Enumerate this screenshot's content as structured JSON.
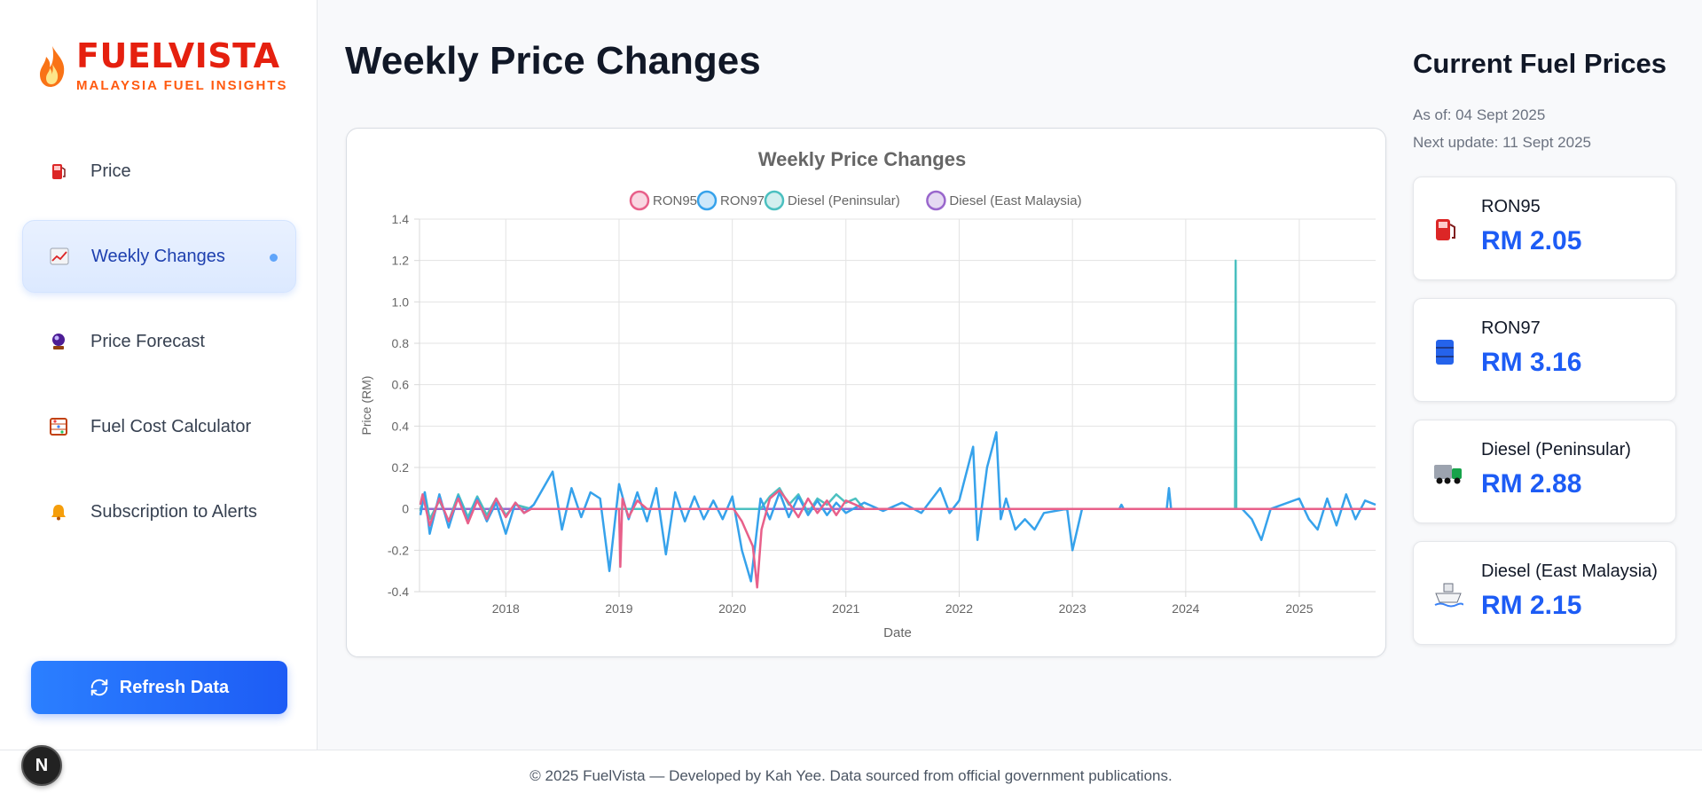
{
  "brand": {
    "title": "FUELVISTA",
    "subtitle": "MALAYSIA FUEL INSIGHTS"
  },
  "sidebar": {
    "items": [
      {
        "label": "Price",
        "icon": "fuel-pump-icon"
      },
      {
        "label": "Weekly Changes",
        "icon": "chart-increasing-icon",
        "active": true
      },
      {
        "label": "Price Forecast",
        "icon": "crystal-ball-icon"
      },
      {
        "label": "Fuel Cost Calculator",
        "icon": "abacus-icon"
      },
      {
        "label": "Subscription to Alerts",
        "icon": "bell-icon"
      }
    ],
    "refresh_label": "Refresh Data"
  },
  "dev_badge": "N",
  "main": {
    "title": "Weekly Price Changes"
  },
  "prices": {
    "title": "Current Fuel Prices",
    "as_of": "As of: 04 Sept 2025",
    "next_update": "Next update: 11 Sept 2025",
    "cards": [
      {
        "name": "RON95",
        "value": "RM 2.05",
        "icon": "fuel-pump-icon"
      },
      {
        "name": "RON97",
        "value": "RM 3.16",
        "icon": "oil-drum-icon"
      },
      {
        "name": "Diesel (Peninsular)",
        "value": "RM 2.88",
        "icon": "truck-icon"
      },
      {
        "name": "Diesel (East Malaysia)",
        "value": "RM 2.15",
        "icon": "ship-icon"
      }
    ]
  },
  "footer": "© 2025 FuelVista — Developed by Kah Yee. Data sourced from official government publications.",
  "colors": {
    "ron95": "#e8608a",
    "ron97": "#36a2eb",
    "diesel_pen": "#4bc0c0",
    "diesel_east": "#9966cc",
    "accent": "#1d5cf5"
  },
  "chart_data": {
    "type": "line",
    "title": "Weekly Price Changes",
    "xlabel": "Date",
    "ylabel": "Price (RM)",
    "ylim": [
      -0.4,
      1.4
    ],
    "y_ticks": [
      "1.4",
      "1.2",
      "1.0",
      "0.8",
      "0.6",
      "0.4",
      "0.2",
      "0",
      "-0.2",
      "-0.4"
    ],
    "x_ticks": [
      "2018",
      "2019",
      "2020",
      "2021",
      "2022",
      "2023",
      "2024",
      "2025"
    ],
    "x_range": [
      "2017-03-29",
      "2025-09-04"
    ],
    "legend": "top",
    "grid": true,
    "series": [
      {
        "name": "RON95",
        "color": "#e8608a",
        "points": [
          [
            "2017-04-01",
            0.02
          ],
          [
            "2017-04-08",
            0.07
          ],
          [
            "2017-05-01",
            -0.08
          ],
          [
            "2017-06-01",
            0.05
          ],
          [
            "2017-07-01",
            -0.06
          ],
          [
            "2017-08-01",
            0.05
          ],
          [
            "2017-09-01",
            -0.07
          ],
          [
            "2017-10-01",
            0.04
          ],
          [
            "2017-11-01",
            -0.05
          ],
          [
            "2017-12-01",
            0.05
          ],
          [
            "2018-01-01",
            -0.04
          ],
          [
            "2018-02-01",
            0.03
          ],
          [
            "2018-03-01",
            -0.02
          ],
          [
            "2018-03-24",
            0
          ],
          [
            "2019-01-01",
            0
          ],
          [
            "2019-01-05",
            -0.28
          ],
          [
            "2019-01-12",
            0.05
          ],
          [
            "2019-02-01",
            -0.04
          ],
          [
            "2019-03-01",
            0.04
          ],
          [
            "2019-04-01",
            0
          ],
          [
            "2019-09-01",
            0
          ],
          [
            "2020-01-05",
            0
          ],
          [
            "2020-02-01",
            -0.06
          ],
          [
            "2020-03-07",
            -0.18
          ],
          [
            "2020-03-21",
            -0.38
          ],
          [
            "2020-04-04",
            -0.1
          ],
          [
            "2020-05-01",
            0.05
          ],
          [
            "2020-06-01",
            0.09
          ],
          [
            "2020-07-01",
            0.03
          ],
          [
            "2020-08-01",
            -0.04
          ],
          [
            "2020-09-01",
            0.05
          ],
          [
            "2020-10-01",
            -0.02
          ],
          [
            "2020-11-01",
            0.04
          ],
          [
            "2020-12-01",
            -0.03
          ],
          [
            "2021-01-01",
            0.04
          ],
          [
            "2021-02-01",
            0.02
          ],
          [
            "2021-03-01",
            0
          ],
          [
            "2025-09-04",
            0
          ]
        ]
      },
      {
        "name": "RON97",
        "color": "#36a2eb",
        "points": [
          [
            "2017-04-01",
            -0.03
          ],
          [
            "2017-04-15",
            0.08
          ],
          [
            "2017-05-01",
            -0.12
          ],
          [
            "2017-06-01",
            0.07
          ],
          [
            "2017-07-01",
            -0.09
          ],
          [
            "2017-08-01",
            0.06
          ],
          [
            "2017-09-01",
            -0.06
          ],
          [
            "2017-10-01",
            0.05
          ],
          [
            "2017-11-01",
            -0.06
          ],
          [
            "2017-12-01",
            0.03
          ],
          [
            "2018-01-01",
            -0.12
          ],
          [
            "2018-02-01",
            0.03
          ],
          [
            "2018-03-01",
            -0.02
          ],
          [
            "2018-04-01",
            0.02
          ],
          [
            "2018-06-01",
            0.18
          ],
          [
            "2018-07-01",
            -0.1
          ],
          [
            "2018-08-01",
            0.1
          ],
          [
            "2018-09-01",
            -0.04
          ],
          [
            "2018-10-01",
            0.08
          ],
          [
            "2018-11-01",
            0.05
          ],
          [
            "2018-12-01",
            -0.3
          ],
          [
            "2019-01-01",
            0.12
          ],
          [
            "2019-02-01",
            -0.05
          ],
          [
            "2019-03-01",
            0.08
          ],
          [
            "2019-04-01",
            -0.06
          ],
          [
            "2019-05-01",
            0.1
          ],
          [
            "2019-06-01",
            -0.22
          ],
          [
            "2019-07-01",
            0.08
          ],
          [
            "2019-08-01",
            -0.06
          ],
          [
            "2019-09-01",
            0.06
          ],
          [
            "2019-10-01",
            -0.05
          ],
          [
            "2019-11-01",
            0.04
          ],
          [
            "2019-12-01",
            -0.05
          ],
          [
            "2020-01-01",
            0.06
          ],
          [
            "2020-02-01",
            -0.2
          ],
          [
            "2020-03-01",
            -0.35
          ],
          [
            "2020-04-01",
            0.05
          ],
          [
            "2020-05-01",
            -0.05
          ],
          [
            "2020-06-01",
            0.08
          ],
          [
            "2020-07-01",
            -0.04
          ],
          [
            "2020-08-01",
            0.06
          ],
          [
            "2020-09-01",
            -0.03
          ],
          [
            "2020-10-01",
            0.04
          ],
          [
            "2020-11-01",
            -0.03
          ],
          [
            "2020-12-01",
            0.03
          ],
          [
            "2021-01-01",
            -0.02
          ],
          [
            "2021-03-01",
            0.03
          ],
          [
            "2021-05-01",
            -0.01
          ],
          [
            "2021-07-01",
            0.03
          ],
          [
            "2021-09-01",
            -0.02
          ],
          [
            "2021-11-01",
            0.1
          ],
          [
            "2021-12-01",
            -0.02
          ],
          [
            "2022-01-01",
            0.04
          ],
          [
            "2022-02-15",
            0.3
          ],
          [
            "2022-03-01",
            -0.15
          ],
          [
            "2022-04-01",
            0.2
          ],
          [
            "2022-05-01",
            0.37
          ],
          [
            "2022-05-15",
            -0.05
          ],
          [
            "2022-06-01",
            0.05
          ],
          [
            "2022-07-01",
            -0.1
          ],
          [
            "2022-08-01",
            -0.05
          ],
          [
            "2022-09-01",
            -0.1
          ],
          [
            "2022-10-01",
            -0.02
          ],
          [
            "2022-12-15",
            0
          ],
          [
            "2023-01-01",
            -0.2
          ],
          [
            "2023-02-01",
            0
          ],
          [
            "2023-06-01",
            0
          ],
          [
            "2023-06-08",
            0.02
          ],
          [
            "2023-06-15",
            0
          ],
          [
            "2023-11-01",
            0
          ],
          [
            "2023-11-08",
            0.1
          ],
          [
            "2023-11-15",
            0
          ],
          [
            "2024-07-01",
            0
          ],
          [
            "2024-08-01",
            -0.05
          ],
          [
            "2024-09-01",
            -0.15
          ],
          [
            "2024-10-01",
            0
          ],
          [
            "2025-01-01",
            0.05
          ],
          [
            "2025-02-01",
            -0.05
          ],
          [
            "2025-03-01",
            -0.1
          ],
          [
            "2025-04-01",
            0.05
          ],
          [
            "2025-05-01",
            -0.08
          ],
          [
            "2025-06-01",
            0.07
          ],
          [
            "2025-07-01",
            -0.05
          ],
          [
            "2025-08-01",
            0.04
          ],
          [
            "2025-09-04",
            0.02
          ]
        ]
      },
      {
        "name": "Diesel (Peninsular)",
        "color": "#4bc0c0",
        "points": [
          [
            "2017-04-01",
            -0.01
          ],
          [
            "2017-04-15",
            0.08
          ],
          [
            "2017-05-01",
            -0.05
          ],
          [
            "2017-06-01",
            0.04
          ],
          [
            "2017-07-01",
            -0.06
          ],
          [
            "2017-08-01",
            0.07
          ],
          [
            "2017-09-01",
            -0.04
          ],
          [
            "2017-10-01",
            0.06
          ],
          [
            "2017-11-01",
            -0.03
          ],
          [
            "2017-12-01",
            0.05
          ],
          [
            "2018-01-01",
            -0.03
          ],
          [
            "2018-02-01",
            0.02
          ],
          [
            "2018-03-24",
            0
          ],
          [
            "2020-04-01",
            0
          ],
          [
            "2020-05-01",
            0.06
          ],
          [
            "2020-06-01",
            0.1
          ],
          [
            "2020-07-01",
            0.02
          ],
          [
            "2020-08-01",
            0.07
          ],
          [
            "2020-09-01",
            -0.02
          ],
          [
            "2020-10-01",
            0.05
          ],
          [
            "2020-11-01",
            0.02
          ],
          [
            "2020-12-01",
            0.07
          ],
          [
            "2021-01-01",
            0.03
          ],
          [
            "2021-02-01",
            0.05
          ],
          [
            "2021-03-01",
            0
          ],
          [
            "2024-06-08",
            0
          ],
          [
            "2024-06-10",
            1.2
          ],
          [
            "2024-06-12",
            0
          ],
          [
            "2025-09-04",
            0
          ]
        ]
      },
      {
        "name": "Diesel (East Malaysia)",
        "color": "#9966cc",
        "points": [
          [
            "2017-03-29",
            0
          ],
          [
            "2025-09-04",
            0
          ]
        ]
      }
    ]
  }
}
